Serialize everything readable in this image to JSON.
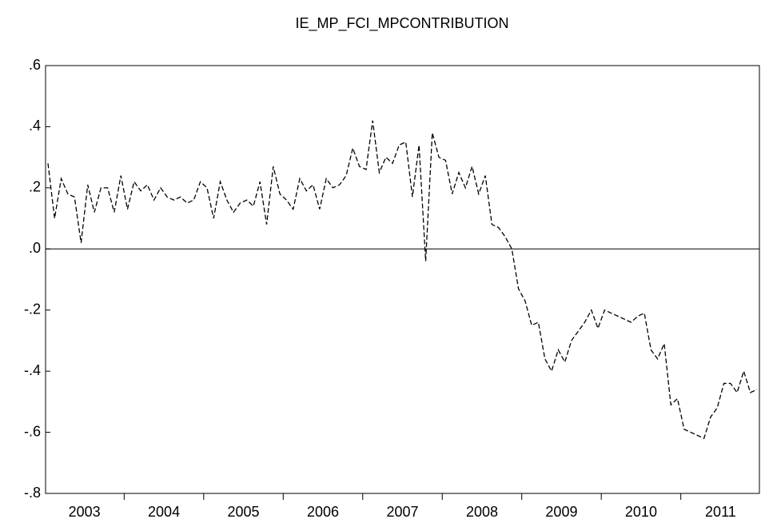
{
  "chart_data": {
    "type": "line",
    "title": "IE_MP_FCI_MPCONTRIBUTION",
    "categories": [
      null,
      null,
      null,
      null,
      null,
      null,
      "2003",
      null,
      null,
      null,
      null,
      null,
      null,
      null,
      null,
      null,
      null,
      null,
      "2004",
      null,
      null,
      null,
      null,
      null,
      null,
      null,
      null,
      null,
      null,
      null,
      "2005",
      null,
      null,
      null,
      null,
      null,
      null,
      null,
      null,
      null,
      null,
      null,
      "2006",
      null,
      null,
      null,
      null,
      null,
      null,
      null,
      null,
      null,
      null,
      null,
      "2007",
      null,
      null,
      null,
      null,
      null,
      null,
      null,
      null,
      null,
      null,
      null,
      "2008",
      null,
      null,
      null,
      null,
      null,
      null,
      null,
      null,
      null,
      null,
      null,
      "2009",
      null,
      null,
      null,
      null,
      null,
      null,
      null,
      null,
      null,
      null,
      null,
      "2010",
      null,
      null,
      null,
      null,
      null,
      null,
      null,
      null,
      null,
      null,
      null,
      "2011",
      null,
      null,
      null,
      null,
      null
    ],
    "series": [
      {
        "color": "#000000",
        "values": [
          0.28,
          0.1,
          0.23,
          0.18,
          0.17,
          0.02,
          0.21,
          0.12,
          0.2,
          0.2,
          0.12,
          0.24,
          0.13,
          0.22,
          0.19,
          0.21,
          0.16,
          0.2,
          0.17,
          0.16,
          0.17,
          0.15,
          0.16,
          0.22,
          0.2,
          0.1,
          0.22,
          0.16,
          0.12,
          0.15,
          0.16,
          0.14,
          0.22,
          0.08,
          0.27,
          0.18,
          0.16,
          0.13,
          0.23,
          0.19,
          0.21,
          0.13,
          0.23,
          0.2,
          0.21,
          0.24,
          0.33,
          0.27,
          0.26,
          0.42,
          0.25,
          0.3,
          0.28,
          0.34,
          0.35,
          0.17,
          0.34,
          -0.04,
          0.38,
          0.3,
          0.29,
          0.18,
          0.25,
          0.2,
          0.27,
          0.18,
          0.24,
          0.08,
          0.07,
          0.04,
          0.0,
          -0.13,
          -0.17,
          -0.25,
          -0.24,
          -0.36,
          -0.4,
          -0.33,
          -0.37,
          -0.3,
          -0.27,
          -0.24,
          -0.2,
          -0.26,
          -0.2,
          -0.21,
          -0.22,
          -0.23,
          -0.24,
          -0.22,
          -0.21,
          -0.33,
          -0.36,
          -0.31,
          -0.51,
          -0.49,
          -0.59,
          -0.6,
          -0.61,
          -0.62,
          -0.55,
          -0.52,
          -0.44,
          -0.44,
          -0.47,
          -0.4,
          -0.47,
          -0.46
        ]
      }
    ],
    "ylim": [
      -0.8,
      0.6
    ],
    "yticks": [
      {
        "value": -0.8,
        "label": "-.8"
      },
      {
        "value": -0.6,
        "label": "-.6"
      },
      {
        "value": -0.4,
        "label": "-.4"
      },
      {
        "value": -0.2,
        "label": "-.2"
      },
      {
        "value": 0,
        "label": ".0"
      },
      {
        "value": 0.2,
        "label": ".2"
      },
      {
        "value": 0.4,
        "label": ".4"
      },
      {
        "value": 0.6,
        "label": ".6"
      }
    ],
    "zero_line": true,
    "line_style": "dashed"
  }
}
